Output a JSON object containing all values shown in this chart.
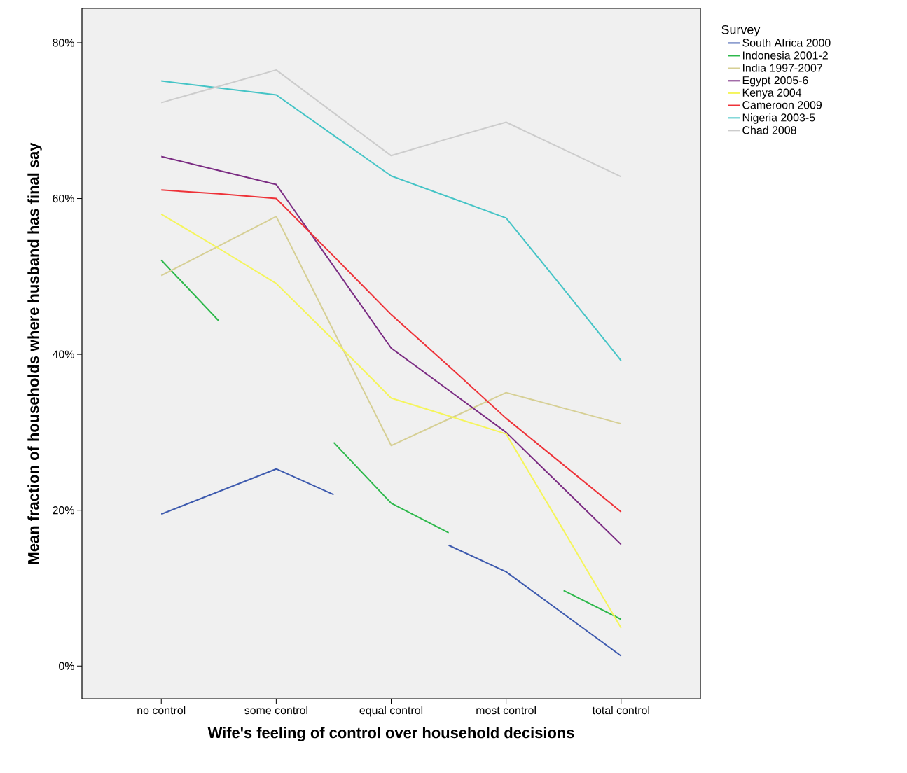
{
  "chart_data": {
    "type": "line",
    "xlabel": "Wife's feeling of control over household decisions",
    "ylabel": "Mean fraction of households where husband has final say",
    "legend_title": "Survey",
    "legend": "right",
    "categories": [
      "no control",
      null,
      "some control",
      null,
      "equal control",
      null,
      "most control",
      null,
      "total control"
    ],
    "ylim": [
      -4.2,
      84.4
    ],
    "yticks": [
      {
        "value": 0,
        "label": "0%"
      },
      {
        "value": 20,
        "label": "20%"
      },
      {
        "value": 40,
        "label": "40%"
      },
      {
        "value": 60,
        "label": "60%"
      },
      {
        "value": 80,
        "label": "80%"
      }
    ],
    "series": [
      {
        "name": "South Africa 2000",
        "color": "#3d5aae",
        "values": [
          19.5,
          22.4,
          25.3,
          22.0,
          null,
          15.5,
          12.1,
          6.7,
          1.3
        ]
      },
      {
        "name": "Indonesia  2001-2",
        "color": "#2db84b",
        "values": [
          52.1,
          44.3,
          null,
          28.7,
          20.9,
          17.1,
          null,
          9.7,
          6.0
        ]
      },
      {
        "name": "India  1997-2007",
        "color": "#d6cf94",
        "values": [
          50.1,
          53.9,
          57.7,
          43.0,
          28.3,
          31.7,
          35.1,
          33.1,
          31.1
        ]
      },
      {
        "name": "Egypt  2005-6",
        "color": "#7a2b82",
        "values": [
          65.4,
          63.6,
          61.8,
          51.3,
          40.8,
          35.4,
          30.0,
          22.8,
          15.6
        ]
      },
      {
        "name": "Kenya  2004",
        "color": "#f5f55a",
        "values": [
          58.0,
          53.6,
          49.1,
          41.8,
          34.4,
          32.1,
          29.8,
          17.4,
          4.9
        ]
      },
      {
        "name": "Cameroon  2009",
        "color": "#ee3238",
        "values": [
          61.1,
          60.6,
          60.0,
          52.6,
          45.1,
          38.5,
          31.8,
          25.8,
          19.8
        ]
      },
      {
        "name": "Nigeria  2003-5",
        "color": "#45c4c6",
        "values": [
          75.1,
          74.2,
          73.3,
          68.1,
          62.9,
          60.2,
          57.5,
          48.4,
          39.2
        ]
      },
      {
        "name": "Chad  2008",
        "color": "#cccccc",
        "values": [
          72.3,
          74.4,
          76.5,
          71.0,
          65.5,
          67.7,
          69.8,
          66.3,
          62.8
        ]
      }
    ]
  }
}
